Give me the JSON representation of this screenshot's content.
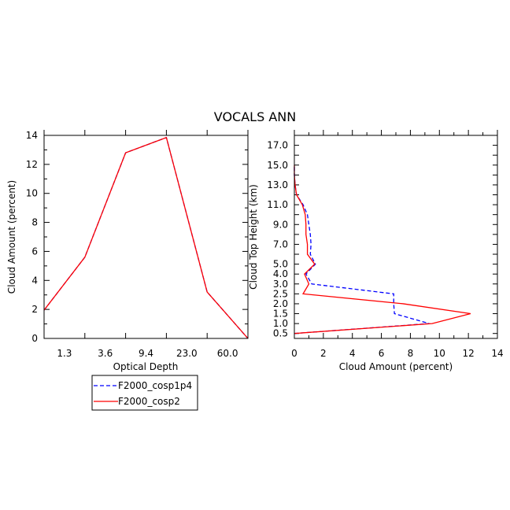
{
  "title": "VOCALS ANN",
  "legend": {
    "entries": [
      {
        "label": "F2000_cosp1p4",
        "color": "#0000ff",
        "dash": "dashed"
      },
      {
        "label": "F2000_cosp2",
        "color": "#ff0000",
        "dash": "solid"
      }
    ],
    "placement": "below-left"
  },
  "chart_data": [
    {
      "type": "line",
      "xlabel": "Optical Depth",
      "ylabel": "Cloud Amount (percent)",
      "x_ticks": [
        "1.3",
        "3.6",
        "9.4",
        "23.0",
        "60.0"
      ],
      "x": [
        0,
        1,
        2,
        3,
        4,
        5
      ],
      "ylim": [
        0,
        14
      ],
      "y_ticks": [
        0,
        2,
        4,
        6,
        8,
        10,
        12,
        14
      ],
      "series": [
        {
          "name": "F2000_cosp1p4",
          "color": "#0000ff",
          "dash": "dashed",
          "values": [
            1.95,
            5.6,
            12.8,
            13.85,
            3.2,
            0.0
          ]
        },
        {
          "name": "F2000_cosp2",
          "color": "#ff0000",
          "dash": "solid",
          "values": [
            1.95,
            5.6,
            12.8,
            13.85,
            3.2,
            0.0
          ]
        }
      ]
    },
    {
      "type": "line",
      "xlabel": "Cloud Amount (percent)",
      "ylabel": "Cloud Top Height (km)",
      "xlim": [
        0,
        14
      ],
      "x_ticks": [
        0,
        2,
        4,
        6,
        8,
        10,
        12,
        14
      ],
      "y_ticks": [
        "0.5",
        "1.0",
        "1.5",
        "2.0",
        "2.5",
        "3.0",
        "4.0",
        "5.0",
        "6.0",
        "7.0",
        "8.0",
        "9.0",
        "10.0",
        "11.0",
        "12.0",
        "13.0",
        "14.0",
        "15.0",
        "16.0",
        "17.0"
      ],
      "y_labeled": [
        "0.5",
        "1.0",
        "1.5",
        "2.0",
        "2.5",
        "3.0",
        "4.0",
        "5.0",
        "7.0",
        "9.0",
        "11.0",
        "13.0",
        "15.0",
        "17.0"
      ],
      "series": [
        {
          "name": "F2000_cosp1p4",
          "color": "#0000ff",
          "dash": "dashed",
          "points": [
            [
              0.5,
              0
            ],
            [
              1.0,
              9.3
            ],
            [
              1.5,
              6.9
            ],
            [
              2.0,
              6.85
            ],
            [
              2.5,
              6.85
            ],
            [
              3.0,
              1.2
            ],
            [
              4.0,
              0.8
            ],
            [
              5.0,
              1.45
            ],
            [
              6.0,
              1.1
            ],
            [
              7.0,
              1.15
            ],
            [
              8.0,
              1.1
            ],
            [
              9.0,
              1.0
            ],
            [
              10.0,
              0.9
            ],
            [
              11.0,
              0.6
            ],
            [
              12.0,
              0.15
            ],
            [
              13.0,
              0.05
            ],
            [
              14.0,
              0
            ],
            [
              15.0,
              0
            ]
          ]
        },
        {
          "name": "F2000_cosp2",
          "color": "#ff0000",
          "dash": "solid",
          "points": [
            [
              0.5,
              0
            ],
            [
              1.0,
              9.5
            ],
            [
              1.5,
              12.15
            ],
            [
              2.0,
              7.5
            ],
            [
              2.5,
              0.6
            ],
            [
              3.0,
              1.0
            ],
            [
              4.0,
              0.7
            ],
            [
              5.0,
              1.4
            ],
            [
              6.0,
              0.9
            ],
            [
              7.0,
              0.9
            ],
            [
              8.0,
              0.8
            ],
            [
              9.0,
              0.8
            ],
            [
              10.0,
              0.75
            ],
            [
              11.0,
              0.55
            ],
            [
              12.0,
              0.15
            ],
            [
              13.0,
              0.05
            ],
            [
              14.0,
              0
            ],
            [
              15.0,
              0
            ]
          ]
        }
      ]
    }
  ]
}
